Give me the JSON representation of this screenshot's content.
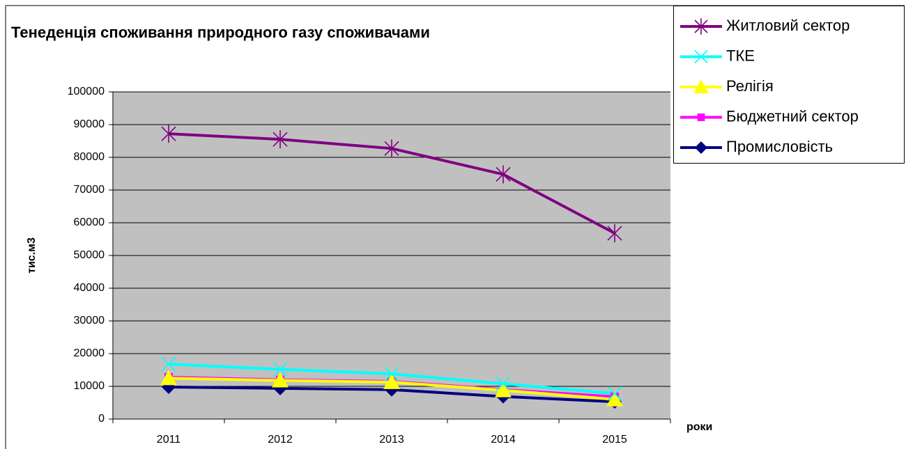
{
  "chart_data": {
    "type": "line",
    "title": "Тенеденція споживання природного газу споживачами",
    "y_label": "тис.м3",
    "x_label": "роки",
    "categories": [
      "2011",
      "2012",
      "2013",
      "2014",
      "2015"
    ],
    "ylim": [
      0,
      100000
    ],
    "yticks": [
      0,
      10000,
      20000,
      30000,
      40000,
      50000,
      60000,
      70000,
      80000,
      90000,
      100000
    ],
    "grid": true,
    "legend": "right",
    "series": [
      {
        "name": "Житловий сектор",
        "color": "#800080",
        "marker": "asterisk",
        "values": [
          87200,
          85500,
          82700,
          74800,
          56800
        ]
      },
      {
        "name": "ТКЕ",
        "color": "#00ffff",
        "marker": "x",
        "values": [
          16800,
          15200,
          13800,
          10800,
          7800
        ]
      },
      {
        "name": "Релігія",
        "color": "#ffff00",
        "marker": "triangle",
        "values": [
          12500,
          11800,
          11300,
          8800,
          6000
        ]
      },
      {
        "name": "Бюджетний сектор",
        "color": "#ff00ff",
        "marker": "square",
        "values": [
          12800,
          12000,
          11500,
          9000,
          6800
        ]
      },
      {
        "name": "Промисловість",
        "color": "#000080",
        "marker": "diamond",
        "values": [
          9800,
          9400,
          9000,
          6900,
          5300
        ]
      }
    ]
  }
}
